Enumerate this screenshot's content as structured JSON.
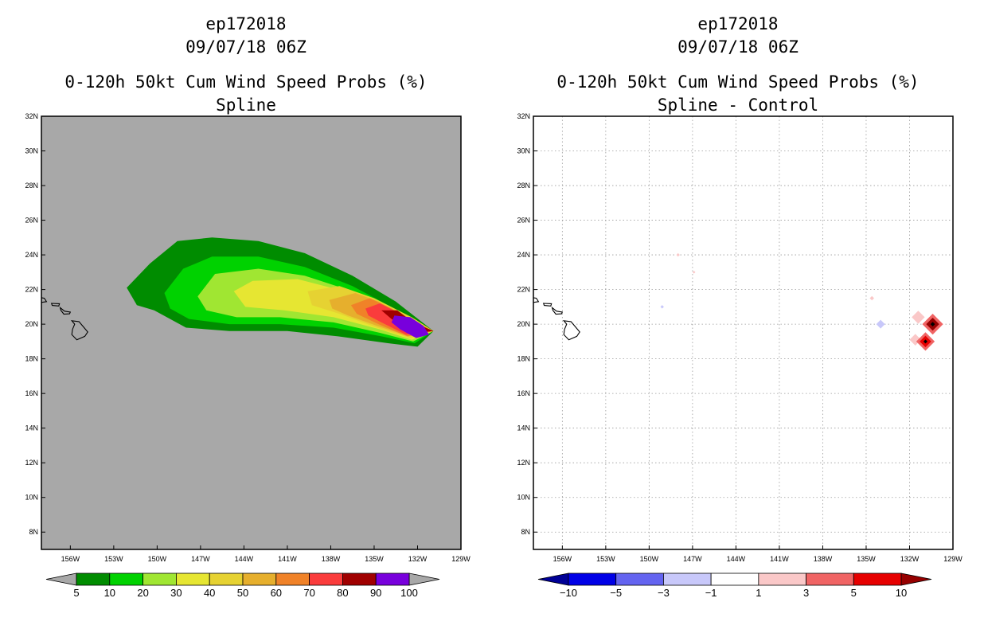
{
  "chart_data": [
    {
      "type": "heatmap",
      "header": [
        "ep172018",
        "09/07/18 06Z"
      ],
      "title": "0-120h 50kt Cum Wind Speed Probs (%)",
      "subtitle": "Spline",
      "xlim": [
        -158,
        -129
      ],
      "ylim": [
        7,
        32
      ],
      "xticks": [
        "156W",
        "153W",
        "150W",
        "147W",
        "144W",
        "141W",
        "138W",
        "135W",
        "132W",
        "129W"
      ],
      "yticks": [
        "8N",
        "10N",
        "12N",
        "14N",
        "16N",
        "18N",
        "20N",
        "22N",
        "24N",
        "26N",
        "28N",
        "30N",
        "32N"
      ],
      "background": "#a8a8a8",
      "gridlines": false,
      "colorbar": {
        "labels": [
          "5",
          "10",
          "20",
          "30",
          "40",
          "50",
          "60",
          "70",
          "80",
          "90",
          "100"
        ],
        "colors": [
          "#008c00",
          "#00d200",
          "#a0e632",
          "#e6e632",
          "#e6d232",
          "#e6af2d",
          "#f08228",
          "#fa3c3c",
          "#a00000",
          "#7800dc"
        ],
        "end_colors": [
          "#a8a8a8",
          "#a8a8a8"
        ]
      },
      "probability_bands": [
        {
          "min": 5,
          "color": "#008c00",
          "polygon": [
            [
              -152.1,
              22.1
            ],
            [
              -150.5,
              23.5
            ],
            [
              -148.6,
              24.8
            ],
            [
              -146.2,
              25.0
            ],
            [
              -143.0,
              24.8
            ],
            [
              -139.8,
              24.1
            ],
            [
              -136.5,
              22.8
            ],
            [
              -133.5,
              21.3
            ],
            [
              -130.9,
              19.6
            ],
            [
              -132.0,
              18.7
            ],
            [
              -134.0,
              18.9
            ],
            [
              -137.5,
              19.3
            ],
            [
              -141.0,
              19.6
            ],
            [
              -145.0,
              19.6
            ],
            [
              -148.0,
              19.8
            ],
            [
              -150.2,
              20.8
            ],
            [
              -151.4,
              21.1
            ]
          ]
        },
        {
          "min": 10,
          "color": "#00d200",
          "polygon": [
            [
              -149.5,
              21.8
            ],
            [
              -148.2,
              23.2
            ],
            [
              -146.2,
              23.9
            ],
            [
              -143.0,
              23.9
            ],
            [
              -139.8,
              23.3
            ],
            [
              -136.5,
              22.2
            ],
            [
              -133.6,
              20.9
            ],
            [
              -130.9,
              19.6
            ],
            [
              -132.2,
              18.9
            ],
            [
              -134.5,
              19.3
            ],
            [
              -137.8,
              19.8
            ],
            [
              -141.5,
              20.0
            ],
            [
              -145.0,
              20.0
            ],
            [
              -147.8,
              20.3
            ],
            [
              -149.1,
              20.9
            ]
          ]
        },
        {
          "min": 20,
          "color": "#a0e632",
          "polygon": [
            [
              -147.2,
              21.6
            ],
            [
              -146.0,
              22.9
            ],
            [
              -143.0,
              23.2
            ],
            [
              -139.8,
              22.8
            ],
            [
              -136.5,
              21.9
            ],
            [
              -133.6,
              20.8
            ],
            [
              -130.9,
              19.6
            ],
            [
              -132.3,
              19.0
            ],
            [
              -134.6,
              19.5
            ],
            [
              -137.8,
              20.1
            ],
            [
              -141.5,
              20.4
            ],
            [
              -144.5,
              20.4
            ],
            [
              -146.6,
              20.8
            ]
          ]
        },
        {
          "min": 30,
          "color": "#e6e632",
          "polygon": [
            [
              -144.7,
              21.9
            ],
            [
              -143.4,
              22.5
            ],
            [
              -140.3,
              22.6
            ],
            [
              -137.5,
              22.0
            ],
            [
              -134.8,
              21.2
            ],
            [
              -132.2,
              20.3
            ],
            [
              -130.9,
              19.6
            ],
            [
              -132.4,
              19.1
            ],
            [
              -134.6,
              19.7
            ],
            [
              -137.8,
              20.4
            ],
            [
              -141.2,
              20.8
            ],
            [
              -143.9,
              21.0
            ]
          ]
        },
        {
          "min": 40,
          "color": "#e6d232",
          "polygon": [
            [
              -139.6,
              21.9
            ],
            [
              -137.4,
              22.2
            ],
            [
              -135.0,
              21.5
            ],
            [
              -132.4,
              20.4
            ],
            [
              -130.9,
              19.6
            ],
            [
              -132.5,
              19.2
            ],
            [
              -134.8,
              19.8
            ],
            [
              -137.4,
              20.6
            ],
            [
              -139.3,
              21.1
            ]
          ]
        },
        {
          "min": 50,
          "color": "#e6af2d",
          "polygon": [
            [
              -138.1,
              21.4
            ],
            [
              -136.3,
              21.8
            ],
            [
              -134.7,
              21.3
            ],
            [
              -132.5,
              20.3
            ],
            [
              -130.9,
              19.6
            ],
            [
              -132.6,
              19.3
            ],
            [
              -134.8,
              19.9
            ],
            [
              -136.8,
              20.5
            ],
            [
              -137.9,
              20.9
            ]
          ]
        },
        {
          "min": 60,
          "color": "#f08228",
          "polygon": [
            [
              -136.6,
              21.1
            ],
            [
              -135.3,
              21.5
            ],
            [
              -133.8,
              20.9
            ],
            [
              -132.2,
              20.1
            ],
            [
              -130.9,
              19.6
            ],
            [
              -132.7,
              19.3
            ],
            [
              -134.7,
              20.0
            ],
            [
              -136.2,
              20.6
            ]
          ]
        },
        {
          "min": 70,
          "color": "#fa3c3c",
          "polygon": [
            [
              -135.6,
              20.9
            ],
            [
              -134.6,
              21.2
            ],
            [
              -133.2,
              20.6
            ],
            [
              -131.9,
              19.9
            ],
            [
              -130.9,
              19.6
            ],
            [
              -132.8,
              19.4
            ],
            [
              -134.5,
              20.1
            ],
            [
              -135.4,
              20.5
            ]
          ]
        },
        {
          "min": 80,
          "color": "#a00000",
          "polygon": [
            [
              -134.5,
              20.8
            ],
            [
              -133.4,
              20.8
            ],
            [
              -132.3,
              20.1
            ],
            [
              -130.9,
              19.6
            ],
            [
              -132.2,
              19.5
            ],
            [
              -133.8,
              20.3
            ]
          ]
        },
        {
          "min": 90,
          "color": "#7800dc",
          "polygon": [
            [
              -133.6,
              20.5
            ],
            [
              -132.5,
              20.4
            ],
            [
              -131.6,
              19.9
            ],
            [
              -131.2,
              19.4
            ],
            [
              -132.1,
              19.2
            ],
            [
              -133.2,
              19.7
            ],
            [
              -133.8,
              20.1
            ]
          ]
        }
      ]
    },
    {
      "type": "heatmap",
      "header": [
        "ep172018",
        "09/07/18 06Z"
      ],
      "title": "0-120h 50kt Cum Wind Speed Probs (%)",
      "subtitle": "Spline - Control",
      "xlim": [
        -158,
        -129
      ],
      "ylim": [
        7,
        32
      ],
      "xticks": [
        "156W",
        "153W",
        "150W",
        "147W",
        "144W",
        "141W",
        "138W",
        "135W",
        "132W",
        "129W"
      ],
      "yticks": [
        "8N",
        "10N",
        "12N",
        "14N",
        "16N",
        "18N",
        "20N",
        "22N",
        "24N",
        "26N",
        "28N",
        "30N",
        "32N"
      ],
      "background": "#ffffff",
      "gridlines": true,
      "colorbar": {
        "labels": [
          "-10",
          "-5",
          "-3",
          "-1",
          "1",
          "3",
          "5",
          "10"
        ],
        "colors": [
          "#0000e6",
          "#6464f0",
          "#c8c8fa",
          "#ffffff",
          "#fac8c8",
          "#f06464",
          "#e60000"
        ],
        "end_colors": [
          "#000096",
          "#960000"
        ]
      },
      "difference_features": [
        {
          "lon": -148.0,
          "lat": 24.0,
          "value": 1.5,
          "size": 0.12
        },
        {
          "lon": -146.9,
          "lat": 23.0,
          "value": 1.5,
          "size": 0.1
        },
        {
          "lon": -149.1,
          "lat": 21.0,
          "value": -1.5,
          "size": 0.12
        },
        {
          "lon": -134.6,
          "lat": 21.5,
          "value": 1.5,
          "size": 0.15
        },
        {
          "lon": -134.0,
          "lat": 20.0,
          "value": -2.0,
          "size": 0.3
        },
        {
          "lon": -131.4,
          "lat": 20.4,
          "value": 2.0,
          "size": 0.45
        },
        {
          "lon": -130.4,
          "lat": 20.0,
          "value": 12.0,
          "size": 0.45
        },
        {
          "lon": -131.6,
          "lat": 19.1,
          "value": 2.0,
          "size": 0.4
        },
        {
          "lon": -130.9,
          "lat": 19.0,
          "value": 7.0,
          "size": 0.4
        }
      ]
    }
  ]
}
